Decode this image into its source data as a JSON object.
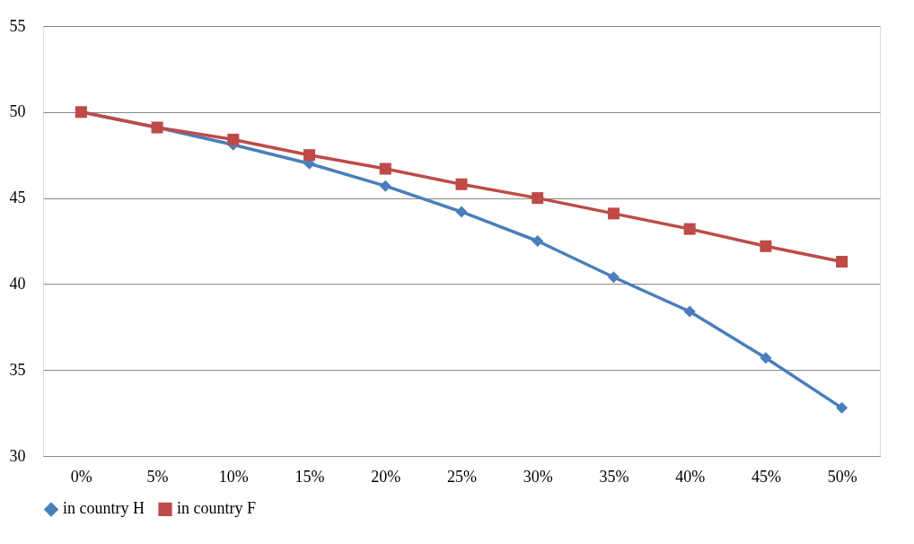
{
  "chart_data": {
    "type": "line",
    "categories": [
      "0%",
      "5%",
      "10%",
      "15%",
      "20%",
      "25%",
      "30%",
      "35%",
      "40%",
      "45%",
      "50%"
    ],
    "series": [
      {
        "name": "in country H",
        "color": "#4a7ebb",
        "marker": "diamond",
        "values": [
          50,
          49.1,
          48.1,
          47.0,
          45.7,
          44.2,
          42.5,
          40.4,
          38.4,
          35.7,
          32.8
        ]
      },
      {
        "name": "in country F",
        "color": "#be4b48",
        "marker": "square",
        "values": [
          50,
          49.1,
          48.4,
          47.5,
          46.7,
          45.8,
          45.0,
          44.1,
          43.2,
          42.2,
          41.3
        ]
      }
    ],
    "ylim": [
      30,
      55
    ],
    "yticks": [
      30,
      35,
      40,
      45,
      50,
      55
    ],
    "grid": "y",
    "legend": "bottom"
  }
}
